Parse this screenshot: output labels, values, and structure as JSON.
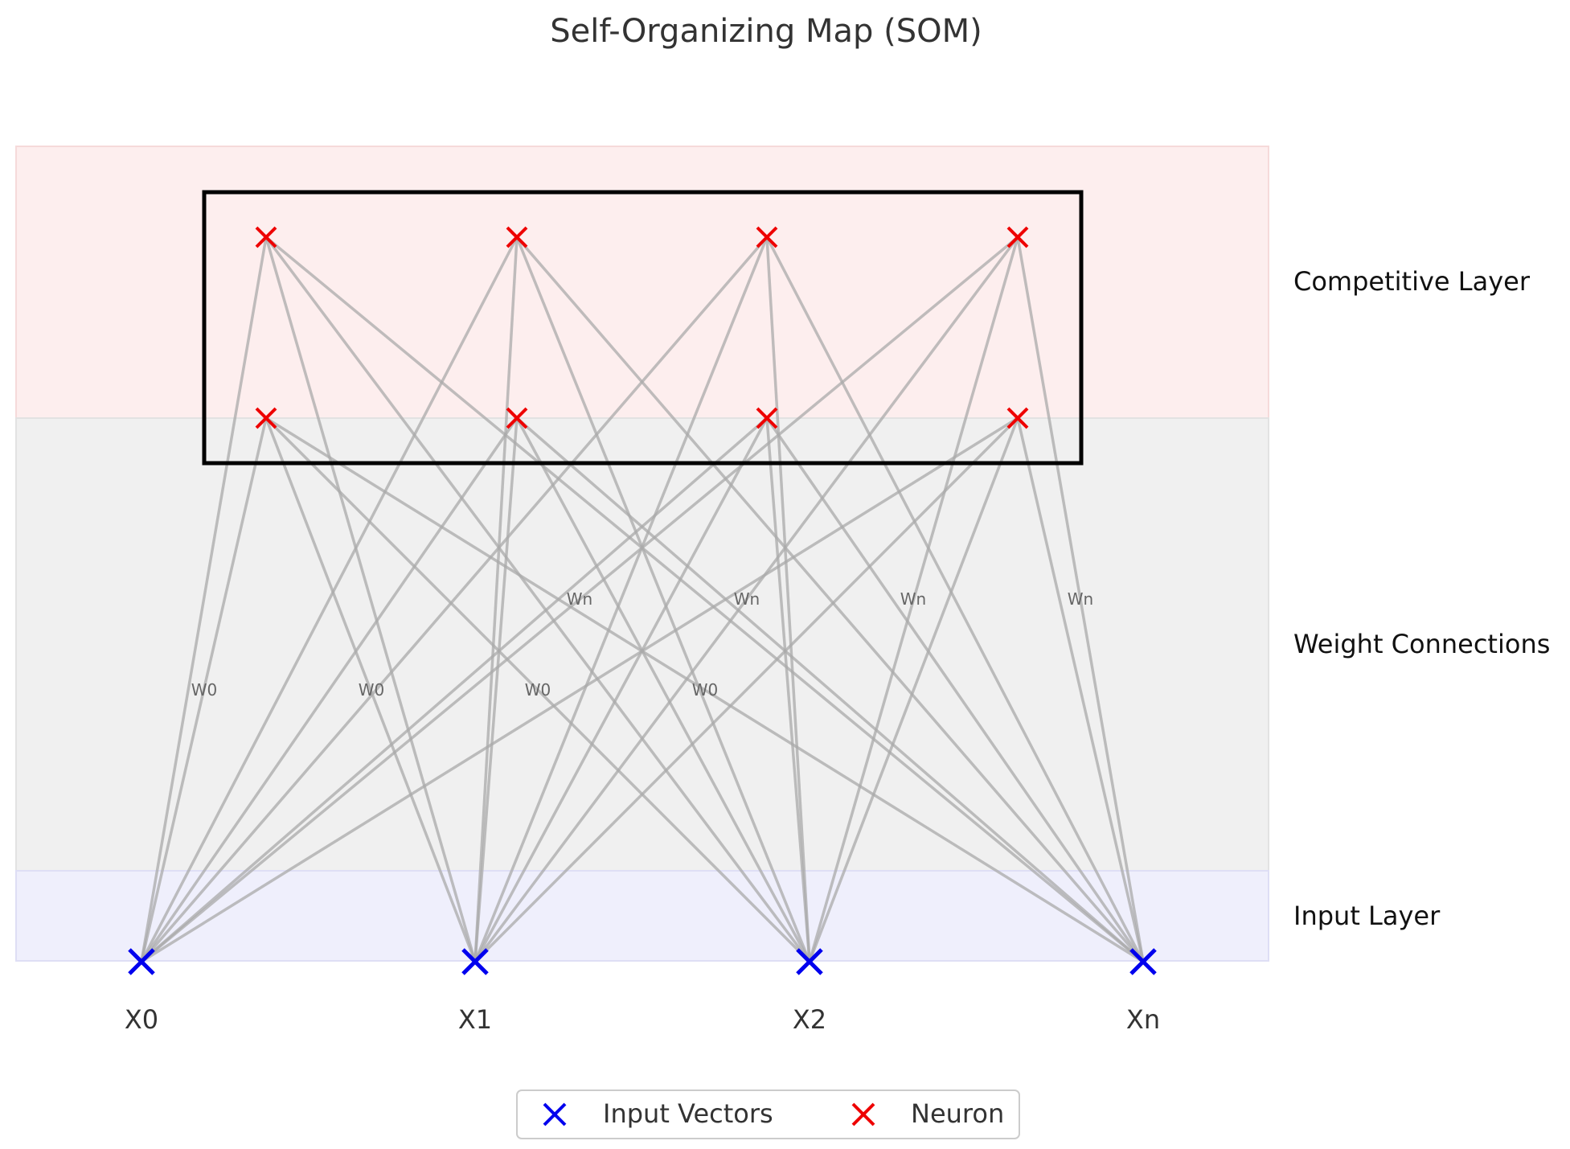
{
  "title": "Self-Organizing Map (SOM)",
  "layers": {
    "competitive": "Competitive Layer",
    "weights": "Weight Connections",
    "input": "Input Layer"
  },
  "inputs": [
    "X0",
    "X1",
    "X2",
    "Xn"
  ],
  "weight_labels": {
    "lower": [
      "W0",
      "W0",
      "W0",
      "W0"
    ],
    "upper": [
      "Wn",
      "Wn",
      "Wn",
      "Wn"
    ]
  },
  "neuron_grid": {
    "rows": 2,
    "cols": 4
  },
  "legend": {
    "input_vectors": "Input Vectors",
    "neuron": "Neuron"
  },
  "colors": {
    "input_marker": "#0000ee",
    "neuron_marker": "#ee0000",
    "competitive_band": "#fdeeee",
    "weights_band": "#f0f0f0",
    "input_band": "#efeffc",
    "connection": "#aaaaaa",
    "frame": "#000000"
  }
}
